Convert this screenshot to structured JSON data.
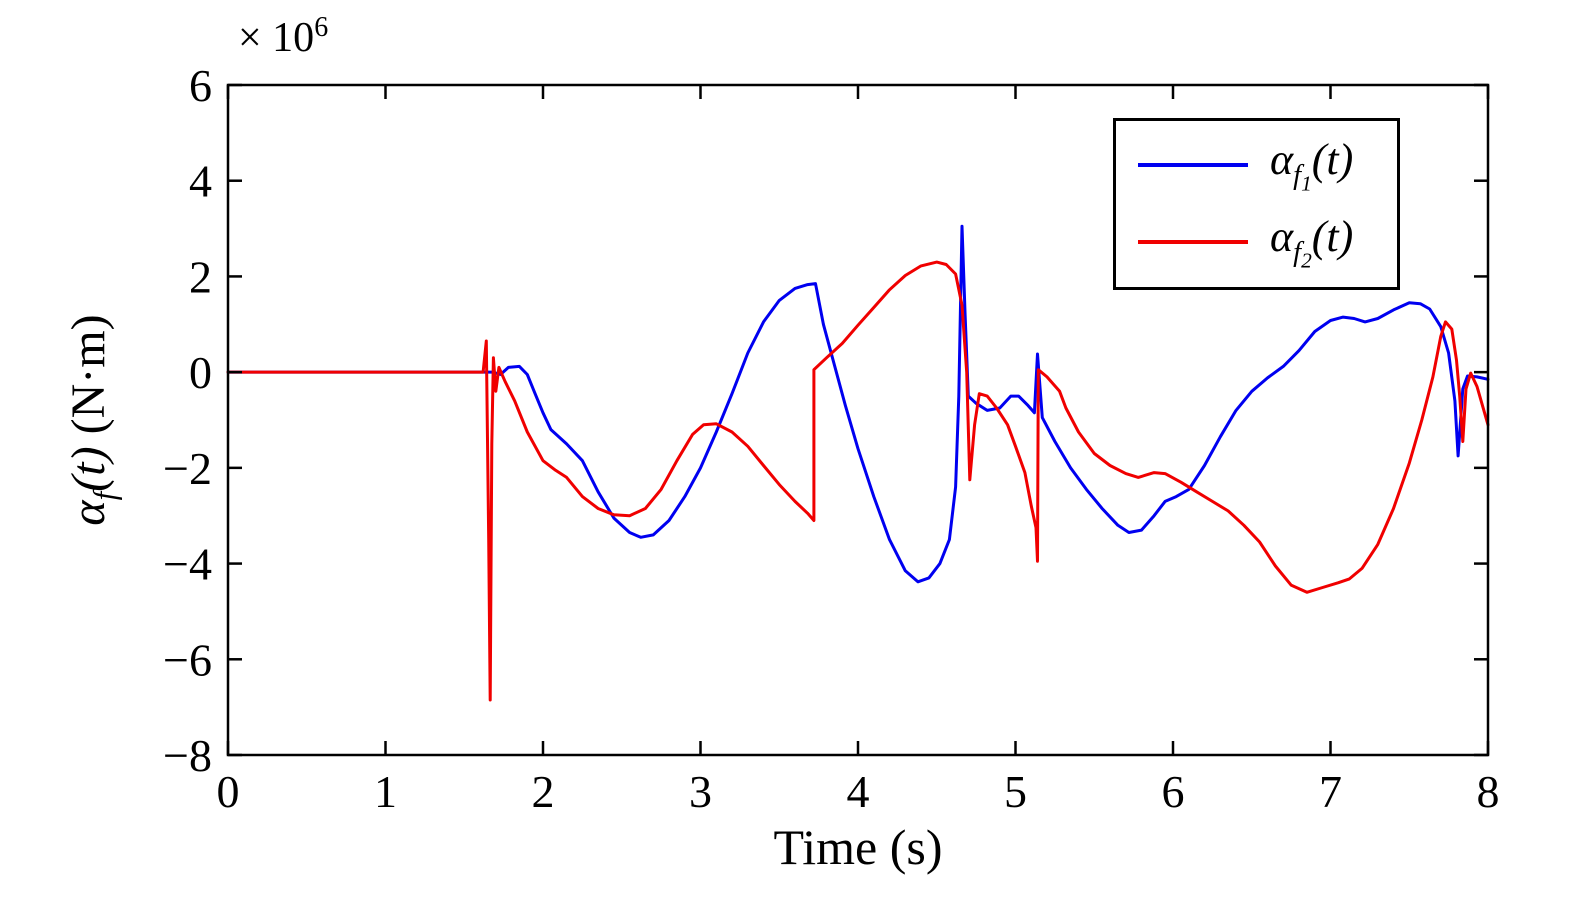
{
  "chart_data": {
    "type": "line",
    "title": "",
    "xlabel": "Time (s)",
    "ylabel_parts": {
      "alpha": "α",
      "sub": "f",
      "arg": "(t)",
      "units": " (N·m)"
    },
    "exponent_label": {
      "base": "× 10",
      "exp": "6"
    },
    "xlim": [
      0,
      8
    ],
    "ylim": [
      -8,
      6
    ],
    "xticks": [
      0,
      1,
      2,
      3,
      4,
      5,
      6,
      7,
      8
    ],
    "yticks": [
      -8,
      -6,
      -4,
      -2,
      0,
      2,
      4,
      6
    ],
    "y_unit_scale": 1000000,
    "grid": false,
    "legend_position": "upper-right",
    "axis_color": "#000000",
    "series": [
      {
        "name": "alpha_f1",
        "color": "#0000F0",
        "legend": {
          "symbol": "α",
          "sub": "f",
          "subsub": "1",
          "suffix": "(t)"
        },
        "points": [
          [
            0,
            0
          ],
          [
            0.5,
            0
          ],
          [
            1.0,
            0
          ],
          [
            1.5,
            0
          ],
          [
            1.68,
            0
          ],
          [
            1.73,
            -0.05
          ],
          [
            1.78,
            0.1
          ],
          [
            1.85,
            0.12
          ],
          [
            1.9,
            -0.05
          ],
          [
            1.95,
            -0.45
          ],
          [
            2.0,
            -0.85
          ],
          [
            2.05,
            -1.2
          ],
          [
            2.15,
            -1.5
          ],
          [
            2.25,
            -1.85
          ],
          [
            2.35,
            -2.5
          ],
          [
            2.45,
            -3.05
          ],
          [
            2.55,
            -3.35
          ],
          [
            2.62,
            -3.45
          ],
          [
            2.7,
            -3.4
          ],
          [
            2.8,
            -3.1
          ],
          [
            2.9,
            -2.6
          ],
          [
            3.0,
            -2.0
          ],
          [
            3.1,
            -1.25
          ],
          [
            3.2,
            -0.45
          ],
          [
            3.3,
            0.4
          ],
          [
            3.4,
            1.05
          ],
          [
            3.5,
            1.5
          ],
          [
            3.6,
            1.75
          ],
          [
            3.68,
            1.83
          ],
          [
            3.73,
            1.85
          ],
          [
            3.78,
            1.0
          ],
          [
            3.85,
            0.15
          ],
          [
            3.92,
            -0.7
          ],
          [
            4.0,
            -1.6
          ],
          [
            4.1,
            -2.6
          ],
          [
            4.2,
            -3.5
          ],
          [
            4.3,
            -4.15
          ],
          [
            4.38,
            -4.38
          ],
          [
            4.45,
            -4.3
          ],
          [
            4.52,
            -4.0
          ],
          [
            4.58,
            -3.5
          ],
          [
            4.62,
            -2.4
          ],
          [
            4.64,
            -0.5
          ],
          [
            4.66,
            3.05
          ],
          [
            4.68,
            1.2
          ],
          [
            4.7,
            -0.5
          ],
          [
            4.75,
            -0.65
          ],
          [
            4.82,
            -0.8
          ],
          [
            4.9,
            -0.75
          ],
          [
            4.97,
            -0.5
          ],
          [
            5.02,
            -0.5
          ],
          [
            5.08,
            -0.7
          ],
          [
            5.12,
            -0.85
          ],
          [
            5.14,
            0.38
          ],
          [
            5.17,
            -0.95
          ],
          [
            5.25,
            -1.45
          ],
          [
            5.35,
            -2.0
          ],
          [
            5.45,
            -2.45
          ],
          [
            5.55,
            -2.85
          ],
          [
            5.65,
            -3.2
          ],
          [
            5.72,
            -3.35
          ],
          [
            5.8,
            -3.3
          ],
          [
            5.88,
            -3.0
          ],
          [
            5.95,
            -2.7
          ],
          [
            6.02,
            -2.6
          ],
          [
            6.1,
            -2.45
          ],
          [
            6.2,
            -1.95
          ],
          [
            6.3,
            -1.35
          ],
          [
            6.4,
            -0.8
          ],
          [
            6.5,
            -0.4
          ],
          [
            6.6,
            -0.12
          ],
          [
            6.7,
            0.12
          ],
          [
            6.8,
            0.45
          ],
          [
            6.9,
            0.85
          ],
          [
            7.0,
            1.08
          ],
          [
            7.08,
            1.15
          ],
          [
            7.15,
            1.12
          ],
          [
            7.22,
            1.05
          ],
          [
            7.3,
            1.12
          ],
          [
            7.4,
            1.3
          ],
          [
            7.5,
            1.45
          ],
          [
            7.57,
            1.43
          ],
          [
            7.63,
            1.32
          ],
          [
            7.7,
            0.95
          ],
          [
            7.75,
            0.4
          ],
          [
            7.79,
            -0.6
          ],
          [
            7.81,
            -1.75
          ],
          [
            7.84,
            -0.35
          ],
          [
            7.87,
            -0.08
          ],
          [
            7.93,
            -0.1
          ],
          [
            8.0,
            -0.15
          ]
        ]
      },
      {
        "name": "alpha_f2",
        "color": "#F00000",
        "legend": {
          "symbol": "α",
          "sub": "f",
          "subsub": "2",
          "suffix": "(t)"
        },
        "points": [
          [
            0,
            0
          ],
          [
            0.5,
            0
          ],
          [
            1.0,
            0
          ],
          [
            1.5,
            0
          ],
          [
            1.62,
            0
          ],
          [
            1.64,
            0.65
          ],
          [
            1.655,
            -3.5
          ],
          [
            1.665,
            -6.85
          ],
          [
            1.675,
            -1.5
          ],
          [
            1.685,
            0.3
          ],
          [
            1.7,
            -0.4
          ],
          [
            1.72,
            0.1
          ],
          [
            1.76,
            -0.2
          ],
          [
            1.82,
            -0.6
          ],
          [
            1.9,
            -1.25
          ],
          [
            2.0,
            -1.85
          ],
          [
            2.08,
            -2.05
          ],
          [
            2.15,
            -2.2
          ],
          [
            2.25,
            -2.6
          ],
          [
            2.35,
            -2.85
          ],
          [
            2.45,
            -2.98
          ],
          [
            2.55,
            -3.0
          ],
          [
            2.65,
            -2.85
          ],
          [
            2.75,
            -2.45
          ],
          [
            2.85,
            -1.85
          ],
          [
            2.95,
            -1.3
          ],
          [
            3.02,
            -1.1
          ],
          [
            3.1,
            -1.08
          ],
          [
            3.2,
            -1.25
          ],
          [
            3.3,
            -1.55
          ],
          [
            3.4,
            -1.95
          ],
          [
            3.5,
            -2.35
          ],
          [
            3.6,
            -2.7
          ],
          [
            3.68,
            -2.95
          ],
          [
            3.72,
            -3.1
          ],
          [
            3.72,
            0.05
          ],
          [
            3.8,
            0.3
          ],
          [
            3.9,
            0.6
          ],
          [
            4.0,
            0.98
          ],
          [
            4.1,
            1.35
          ],
          [
            4.2,
            1.72
          ],
          [
            4.3,
            2.02
          ],
          [
            4.4,
            2.22
          ],
          [
            4.5,
            2.3
          ],
          [
            4.56,
            2.25
          ],
          [
            4.62,
            2.05
          ],
          [
            4.66,
            1.4
          ],
          [
            4.69,
            0.0
          ],
          [
            4.71,
            -2.25
          ],
          [
            4.74,
            -1.1
          ],
          [
            4.77,
            -0.45
          ],
          [
            4.82,
            -0.5
          ],
          [
            4.88,
            -0.75
          ],
          [
            4.95,
            -1.1
          ],
          [
            5.0,
            -1.55
          ],
          [
            5.06,
            -2.1
          ],
          [
            5.1,
            -2.8
          ],
          [
            5.13,
            -3.25
          ],
          [
            5.14,
            -3.95
          ],
          [
            5.145,
            0.05
          ],
          [
            5.2,
            -0.1
          ],
          [
            5.28,
            -0.4
          ],
          [
            5.32,
            -0.75
          ],
          [
            5.4,
            -1.25
          ],
          [
            5.5,
            -1.7
          ],
          [
            5.6,
            -1.95
          ],
          [
            5.7,
            -2.12
          ],
          [
            5.78,
            -2.2
          ],
          [
            5.88,
            -2.1
          ],
          [
            5.95,
            -2.12
          ],
          [
            6.05,
            -2.3
          ],
          [
            6.15,
            -2.5
          ],
          [
            6.25,
            -2.7
          ],
          [
            6.35,
            -2.9
          ],
          [
            6.45,
            -3.2
          ],
          [
            6.55,
            -3.55
          ],
          [
            6.65,
            -4.05
          ],
          [
            6.75,
            -4.45
          ],
          [
            6.85,
            -4.6
          ],
          [
            6.95,
            -4.5
          ],
          [
            7.05,
            -4.4
          ],
          [
            7.12,
            -4.32
          ],
          [
            7.2,
            -4.1
          ],
          [
            7.3,
            -3.6
          ],
          [
            7.4,
            -2.85
          ],
          [
            7.5,
            -1.9
          ],
          [
            7.58,
            -1.0
          ],
          [
            7.65,
            -0.1
          ],
          [
            7.7,
            0.75
          ],
          [
            7.73,
            1.05
          ],
          [
            7.77,
            0.9
          ],
          [
            7.8,
            0.25
          ],
          [
            7.82,
            -0.5
          ],
          [
            7.84,
            -1.45
          ],
          [
            7.86,
            -0.35
          ],
          [
            7.89,
            -0.02
          ],
          [
            7.93,
            -0.3
          ],
          [
            8.0,
            -1.1
          ]
        ]
      }
    ]
  }
}
